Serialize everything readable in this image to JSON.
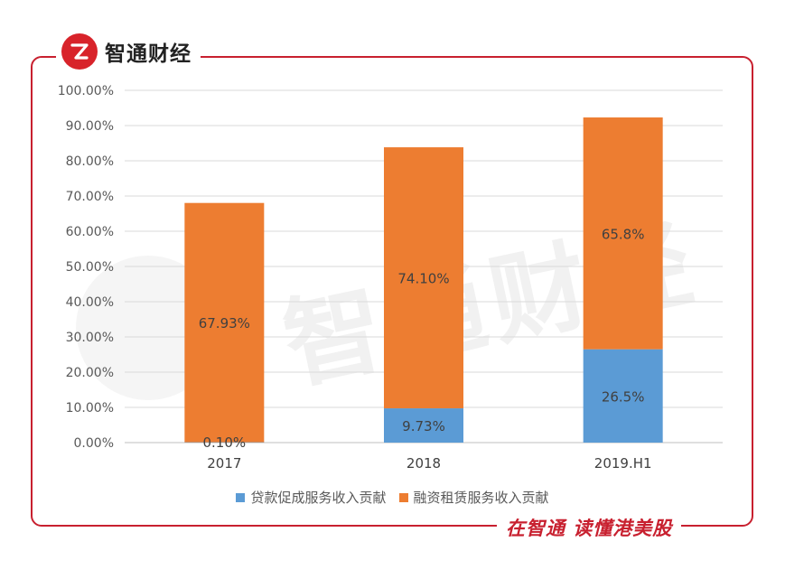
{
  "brand": {
    "name": "智通财经",
    "slogan": "在智通 读懂港美股"
  },
  "watermark": {
    "text": "智通财经"
  },
  "colors": {
    "brand_red": "#c8202f",
    "series_blue": "#5b9bd5",
    "series_orange": "#ed7d31"
  },
  "chart_data": {
    "type": "bar",
    "stacked": true,
    "categories": [
      "2017",
      "2018",
      "2019.H1"
    ],
    "series": [
      {
        "name": "贷款促成服务收入贡献",
        "values": [
          0.1,
          9.73,
          26.5
        ],
        "labels": [
          "0.10%",
          "9.73%",
          "26.5%"
        ],
        "color": "#5b9bd5"
      },
      {
        "name": "融资租赁服务收入贡献",
        "values": [
          67.93,
          74.1,
          65.8
        ],
        "labels": [
          "67.93%",
          "74.10%",
          "65.8%"
        ],
        "color": "#ed7d31"
      }
    ],
    "ylim": [
      0,
      100
    ],
    "yticks": [
      "0.00%",
      "10.00%",
      "20.00%",
      "30.00%",
      "40.00%",
      "50.00%",
      "60.00%",
      "70.00%",
      "80.00%",
      "90.00%",
      "100.00%"
    ],
    "grid": true,
    "legend": "bottom"
  }
}
